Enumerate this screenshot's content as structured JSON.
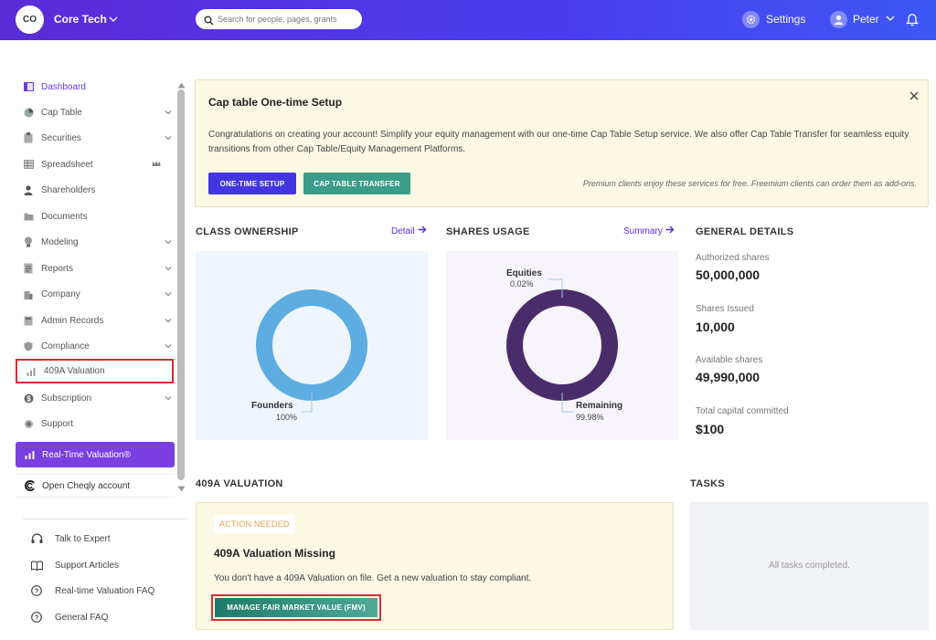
{
  "header": {
    "org_initials": "CO",
    "org_name": "Core Tech",
    "search_placeholder": "Search for people, pages, grants",
    "settings_label": "Settings",
    "user_name": "Peter"
  },
  "sidebar": {
    "items": [
      {
        "label": "Dashboard",
        "icon": "dashboard-icon"
      },
      {
        "label": "Cap Table",
        "icon": "pie-icon"
      },
      {
        "label": "Securities",
        "icon": "clipboard-icon"
      },
      {
        "label": "Spreadsheet",
        "icon": "spreadsheet-icon"
      },
      {
        "label": "Shareholders",
        "icon": "person-icon"
      },
      {
        "label": "Documents",
        "icon": "folder-icon"
      },
      {
        "label": "Modeling",
        "icon": "bulb-icon"
      },
      {
        "label": "Reports",
        "icon": "reports-icon"
      },
      {
        "label": "Company",
        "icon": "building-icon"
      },
      {
        "label": "Admin Records",
        "icon": "records-icon"
      },
      {
        "label": "Compliance",
        "icon": "shield-icon"
      },
      {
        "label": "409A Valuation",
        "icon": "chart-icon"
      },
      {
        "label": "Subscription",
        "icon": "dollar-icon"
      },
      {
        "label": "Support",
        "icon": "support-icon"
      }
    ],
    "rtv_label": "Real-Time Valuation®",
    "cheqly_label": "Open Cheqly account",
    "help": [
      {
        "label": "Talk to Expert",
        "icon": "headset-icon"
      },
      {
        "label": "Support Articles",
        "icon": "book-icon"
      },
      {
        "label": "Real-time Valuation FAQ",
        "icon": "question-icon"
      },
      {
        "label": "General FAQ",
        "icon": "question-icon"
      }
    ]
  },
  "banner": {
    "title": "Cap table One-time Setup",
    "desc": "Congratulations on creating your account! Simplify your equity management with our one-time Cap Table Setup service. We also offer Cap Table Transfer for seamless equity transitions from other Cap Table/Equity Management Platforms.",
    "setup_button": "ONE-TIME SETUP",
    "transfer_button": "CAP TABLE TRANSFER",
    "note": "Premium clients enjoy these services for free. Freemium clients can order them as add-ons."
  },
  "class_ownership": {
    "title": "CLASS OWNERSHIP",
    "link": "Detail",
    "label": "Founders",
    "pct": "100%"
  },
  "shares_usage": {
    "title": "SHARES USAGE",
    "link": "Summary",
    "equities_label": "Equities",
    "equities_pct": "0.02%",
    "remaining_label": "Remaining",
    "remaining_pct": "99.98%"
  },
  "chart_data": [
    {
      "type": "pie",
      "title": "CLASS OWNERSHIP",
      "categories": [
        "Founders"
      ],
      "values": [
        100
      ],
      "colors": [
        "#5dade2"
      ]
    },
    {
      "type": "pie",
      "title": "SHARES USAGE",
      "categories": [
        "Equities",
        "Remaining"
      ],
      "values": [
        0.02,
        99.98
      ],
      "colors": [
        "#4a2c6a",
        "#4a2c6a"
      ]
    }
  ],
  "general": {
    "title": "GENERAL DETAILS",
    "authorized_label": "Authorized shares",
    "authorized_value": "50,000,000",
    "issued_label": "Shares Issued",
    "issued_value": "10,000",
    "available_label": "Available shares",
    "available_value": "49,990,000",
    "capital_label": "Total capital committed",
    "capital_value": "$100"
  },
  "valuation": {
    "section_title": "409A VALUATION",
    "badge": "ACTION NEEDED",
    "title": "409A Valuation Missing",
    "desc": "You don't have a 409A Valuation on file. Get a new valuation to stay compliant.",
    "button": "MANAGE FAIR MARKET VALUE (FMV)"
  },
  "tasks": {
    "title": "TASKS",
    "empty": "All tasks completed."
  },
  "colors": {
    "brand": "#5b2bd6",
    "founders": "#5dade2",
    "shares": "#4a2c6a",
    "highlight": "#d32f2f"
  }
}
